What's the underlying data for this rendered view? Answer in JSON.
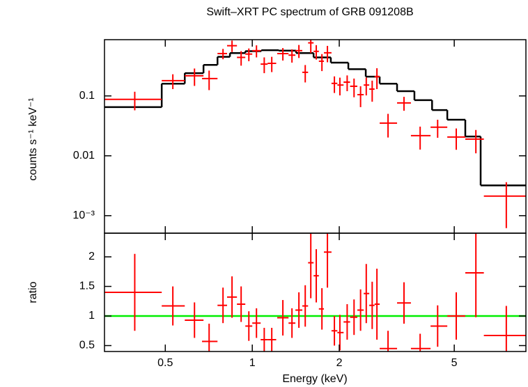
{
  "chart_data": [
    {
      "type": "spectrum",
      "title": "Swift–XRT PC spectrum of GRB 091208B",
      "ylabel": "counts s⁻¹ keV⁻¹",
      "log_y": true,
      "ylim": [
        0.00051,
        0.87
      ],
      "yticks": [
        0.1,
        0.01,
        {
          "value": 0.001,
          "label": "10⁻³"
        }
      ],
      "color": "#ff0000",
      "x_lo": [
        0.308,
        0.486,
        0.584,
        0.67,
        0.758,
        0.818,
        0.885,
        0.946,
        1.0,
        1.069,
        1.13,
        1.22,
        1.335,
        1.41,
        1.49,
        1.56,
        1.63,
        1.7,
        1.77,
        1.88,
        1.97,
        2.07,
        2.18,
        2.31,
        2.43,
        2.54,
        2.65,
        2.76,
        3.17,
        3.54,
        4.14,
        4.73,
        5.46,
        6.33
      ],
      "x_hi": [
        0.486,
        0.584,
        0.678,
        0.758,
        0.818,
        0.885,
        0.946,
        1.0,
        1.069,
        1.13,
        1.21,
        1.335,
        1.41,
        1.49,
        1.56,
        1.63,
        1.7,
        1.77,
        1.88,
        1.97,
        2.07,
        2.18,
        2.31,
        2.43,
        2.54,
        2.65,
        2.76,
        3.17,
        3.54,
        4.14,
        4.73,
        5.46,
        6.33,
        8.85
      ],
      "x": [
        0.392,
        0.531,
        0.631,
        0.709,
        0.792,
        0.851,
        0.915,
        0.973,
        1.034,
        1.1,
        1.168,
        1.276,
        1.372,
        1.45,
        1.525,
        1.594,
        1.665,
        1.742,
        1.82,
        1.924,
        2.01,
        2.13,
        2.25,
        2.37,
        2.48,
        2.6,
        2.7,
        2.95,
        3.35,
        3.81,
        4.38,
        5.08,
        5.94,
        7.57
      ],
      "values": [
        0.0875,
        0.18,
        0.217,
        0.195,
        0.51,
        0.69,
        0.44,
        0.5,
        0.57,
        0.34,
        0.35,
        0.51,
        0.48,
        0.57,
        0.248,
        0.77,
        0.555,
        0.38,
        0.525,
        0.162,
        0.152,
        0.17,
        0.145,
        0.105,
        0.152,
        0.13,
        0.21,
        0.0352,
        0.0765,
        0.0217,
        0.03,
        0.0206,
        0.019,
        0.00212
      ],
      "errors": [
        0.03,
        0.05,
        0.07,
        0.07,
        0.1,
        0.15,
        0.12,
        0.12,
        0.13,
        0.1,
        0.1,
        0.12,
        0.12,
        0.14,
        0.08,
        0.25,
        0.15,
        0.12,
        0.16,
        0.05,
        0.05,
        0.05,
        0.05,
        0.04,
        0.05,
        0.05,
        0.08,
        0.015,
        0.02,
        0.009,
        0.01,
        0.008,
        0.008,
        0.0015
      ],
      "model": {
        "color": "#000000",
        "edges": [
          0.308,
          0.486,
          0.584,
          0.678,
          0.758,
          0.837,
          0.946,
          1.075,
          1.235,
          1.418,
          1.63,
          1.87,
          2.15,
          2.47,
          2.76,
          3.17,
          3.64,
          4.19,
          4.73,
          5.46,
          6.17,
          8.85
        ],
        "values": [
          0.065,
          0.16,
          0.24,
          0.33,
          0.45,
          0.52,
          0.56,
          0.58,
          0.57,
          0.52,
          0.44,
          0.36,
          0.28,
          0.21,
          0.16,
          0.12,
          0.085,
          0.058,
          0.04,
          0.021,
          0.0032
        ]
      }
    },
    {
      "type": "ratio",
      "ylabel": "ratio",
      "xlabel": "Energy (keV)",
      "log_x": true,
      "xlim": [
        0.308,
        8.85
      ],
      "xticks": [
        0.5,
        1,
        2,
        5
      ],
      "ylim": [
        0.4,
        2.4
      ],
      "yticks": [
        0.5,
        1,
        1.5,
        2
      ],
      "color": "#ff0000",
      "reference": 1,
      "reference_color": "#00ee00",
      "values": [
        1.4,
        1.17,
        0.93,
        0.57,
        1.18,
        1.32,
        1.2,
        0.83,
        0.88,
        0.6,
        0.6,
        0.97,
        0.88,
        1.1,
        1.17,
        1.9,
        1.68,
        1.12,
        2.08,
        0.75,
        0.72,
        0.9,
        0.98,
        1.1,
        1.38,
        1.18,
        1.2,
        0.45,
        1.22,
        0.45,
        0.83,
        1.0,
        1.73,
        0.67
      ],
      "errors": [
        0.65,
        0.33,
        0.3,
        0.3,
        0.3,
        0.35,
        0.3,
        0.25,
        0.25,
        0.2,
        0.2,
        0.3,
        0.25,
        0.3,
        0.35,
        0.6,
        0.45,
        0.35,
        0.6,
        0.25,
        0.3,
        0.3,
        0.3,
        0.35,
        0.5,
        0.4,
        0.6,
        0.3,
        0.35,
        0.25,
        0.35,
        0.4,
        0.75,
        0.5
      ]
    }
  ]
}
